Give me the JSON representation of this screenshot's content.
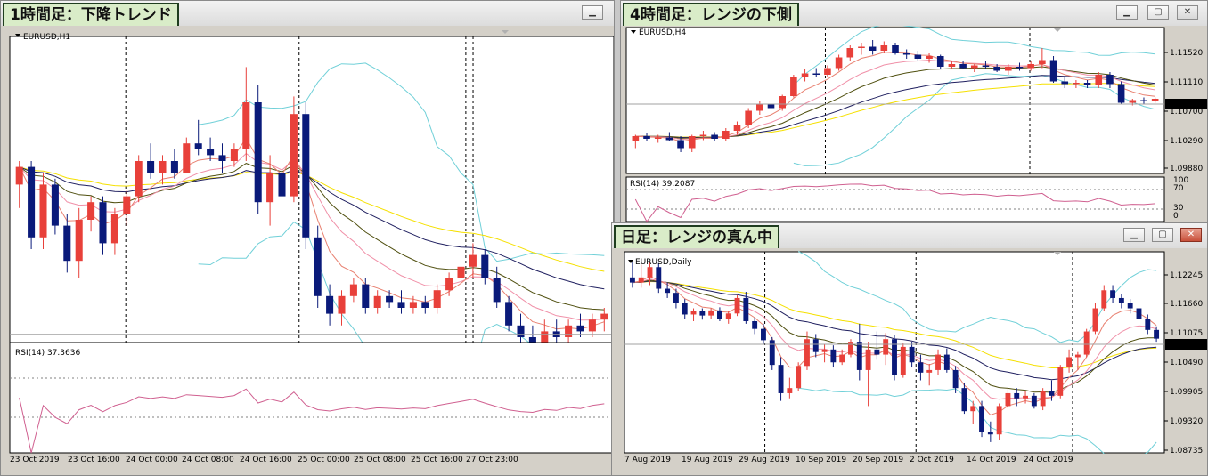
{
  "chart_data": [
    {
      "type": "candlestick",
      "panel_title": "1時間足：下降トレンド",
      "symbol_label": "EURUSD,H1",
      "indicator_label": "RSI(14) 37.3636",
      "x_ticks": [
        "23 Oct 2019",
        "23 Oct 16:00",
        "24 Oct 00:00",
        "24 Oct 08:00",
        "24 Oct 16:00",
        "25 Oct 00:00",
        "25 Oct 08:00",
        "25 Oct 16:00",
        "27 Oct 23:00"
      ],
      "ylim": [
        1.108,
        1.118
      ],
      "current_price": 1.1081,
      "candles": [
        [
          1.1132,
          1.114,
          1.1124,
          1.1138
        ],
        [
          1.1138,
          1.114,
          1.111,
          1.1114
        ],
        [
          1.1114,
          1.1136,
          1.111,
          1.1132
        ],
        [
          1.1132,
          1.1134,
          1.1115,
          1.1118
        ],
        [
          1.1118,
          1.1122,
          1.1102,
          1.1106
        ],
        [
          1.1106,
          1.1124,
          1.11,
          1.112
        ],
        [
          1.112,
          1.1128,
          1.1116,
          1.1126
        ],
        [
          1.1126,
          1.1128,
          1.1108,
          1.1112
        ],
        [
          1.1112,
          1.1124,
          1.1108,
          1.1122
        ],
        [
          1.1122,
          1.113,
          1.1118,
          1.1128
        ],
        [
          1.1128,
          1.1142,
          1.1126,
          1.114
        ],
        [
          1.114,
          1.1146,
          1.1134,
          1.1136
        ],
        [
          1.1136,
          1.1142,
          1.1132,
          1.114
        ],
        [
          1.114,
          1.1144,
          1.1134,
          1.1136
        ],
        [
          1.1136,
          1.1148,
          1.1136,
          1.1146
        ],
        [
          1.1146,
          1.1154,
          1.1142,
          1.1144
        ],
        [
          1.1144,
          1.1148,
          1.114,
          1.1142
        ],
        [
          1.1142,
          1.1146,
          1.1136,
          1.114
        ],
        [
          1.114,
          1.1146,
          1.1138,
          1.1144
        ],
        [
          1.1144,
          1.1172,
          1.114,
          1.116
        ],
        [
          1.116,
          1.1166,
          1.1122,
          1.1126
        ],
        [
          1.1126,
          1.1142,
          1.1118,
          1.1136
        ],
        [
          1.1136,
          1.114,
          1.1124,
          1.1128
        ],
        [
          1.1128,
          1.1162,
          1.1126,
          1.1156
        ],
        [
          1.1156,
          1.116,
          1.111,
          1.1114
        ],
        [
          1.1114,
          1.1118,
          1.109,
          1.1094
        ],
        [
          1.1094,
          1.1098,
          1.1084,
          1.1088
        ],
        [
          1.1088,
          1.1096,
          1.1084,
          1.1094
        ],
        [
          1.1094,
          1.11,
          1.1092,
          1.1098
        ],
        [
          1.1098,
          1.11,
          1.1088,
          1.109
        ],
        [
          1.109,
          1.1096,
          1.1088,
          1.1094
        ],
        [
          1.1094,
          1.1096,
          1.109,
          1.1092
        ],
        [
          1.1092,
          1.1096,
          1.1088,
          1.109
        ],
        [
          1.109,
          1.1094,
          1.1088,
          1.1092
        ],
        [
          1.1092,
          1.1094,
          1.1088,
          1.109
        ],
        [
          1.109,
          1.1098,
          1.1088,
          1.1096
        ],
        [
          1.1096,
          1.1102,
          1.1094,
          1.11
        ],
        [
          1.11,
          1.1106,
          1.1098,
          1.1104
        ],
        [
          1.1104,
          1.1112,
          1.11,
          1.1108
        ],
        [
          1.1108,
          1.111,
          1.1098,
          1.11
        ],
        [
          1.11,
          1.1104,
          1.109,
          1.1092
        ],
        [
          1.1092,
          1.1094,
          1.1082,
          1.1084
        ],
        [
          1.1084,
          1.1088,
          1.1076,
          1.108
        ],
        [
          1.108,
          1.1084,
          1.1074,
          1.1078
        ],
        [
          1.1078,
          1.1086,
          1.1076,
          1.1082
        ],
        [
          1.1082,
          1.1086,
          1.1078,
          1.108
        ],
        [
          1.108,
          1.1086,
          1.1078,
          1.1084
        ],
        [
          1.1084,
          1.1088,
          1.108,
          1.1082
        ],
        [
          1.1082,
          1.1088,
          1.108,
          1.1086
        ],
        [
          1.1086,
          1.109,
          1.1082,
          1.1088
        ]
      ]
    },
    {
      "type": "candlestick",
      "panel_title": "4時間足：レンジの下側",
      "symbol_label": "EURUSD,H4",
      "indicator_label": "RSI(14) 39.2087",
      "y_ticks": [
        1.1152,
        1.1111,
        1.107,
        1.1029,
        1.0988
      ],
      "rsi_ticks": [
        100,
        70,
        30,
        0
      ],
      "ylim": [
        1.098,
        1.118
      ],
      "current_price_label": "1.10810",
      "candles": [
        [
          1.102,
          1.103,
          1.101,
          1.1028
        ],
        [
          1.1028,
          1.1032,
          1.102,
          1.1024
        ],
        [
          1.1024,
          1.103,
          1.1018,
          1.1026
        ],
        [
          1.1026,
          1.1034,
          1.102,
          1.1022
        ],
        [
          1.1022,
          1.1028,
          1.1004,
          1.101
        ],
        [
          1.101,
          1.103,
          1.1004,
          1.1028
        ],
        [
          1.1028,
          1.1036,
          1.1022,
          1.103
        ],
        [
          1.103,
          1.1034,
          1.102,
          1.1024
        ],
        [
          1.1024,
          1.104,
          1.102,
          1.1036
        ],
        [
          1.1036,
          1.105,
          1.103,
          1.1044
        ],
        [
          1.1044,
          1.107,
          1.104,
          1.1066
        ],
        [
          1.1066,
          1.108,
          1.106,
          1.1076
        ],
        [
          1.1076,
          1.1082,
          1.1064,
          1.107
        ],
        [
          1.107,
          1.109,
          1.1066,
          1.1088
        ],
        [
          1.1088,
          1.112,
          1.1086,
          1.1116
        ],
        [
          1.1116,
          1.1128,
          1.111,
          1.1122
        ],
        [
          1.1122,
          1.113,
          1.1116,
          1.112
        ],
        [
          1.112,
          1.1134,
          1.1116,
          1.113
        ],
        [
          1.113,
          1.115,
          1.1126,
          1.1146
        ],
        [
          1.1146,
          1.1164,
          1.114,
          1.116
        ],
        [
          1.116,
          1.1168,
          1.115,
          1.1162
        ],
        [
          1.1162,
          1.1172,
          1.115,
          1.1156
        ],
        [
          1.1156,
          1.117,
          1.1152,
          1.1164
        ],
        [
          1.1164,
          1.1168,
          1.115,
          1.1152
        ],
        [
          1.1152,
          1.1158,
          1.1144,
          1.115
        ],
        [
          1.115,
          1.1156,
          1.114,
          1.1144
        ],
        [
          1.1144,
          1.1152,
          1.1138,
          1.1148
        ],
        [
          1.1148,
          1.115,
          1.1128,
          1.1132
        ],
        [
          1.1132,
          1.114,
          1.1128,
          1.1136
        ],
        [
          1.1136,
          1.114,
          1.1128,
          1.113
        ],
        [
          1.113,
          1.1136,
          1.1124,
          1.1134
        ],
        [
          1.1134,
          1.114,
          1.1128,
          1.1132
        ],
        [
          1.1132,
          1.1136,
          1.1124,
          1.1126
        ],
        [
          1.1126,
          1.1136,
          1.112,
          1.1132
        ],
        [
          1.1132,
          1.1138,
          1.1126,
          1.113
        ],
        [
          1.113,
          1.114,
          1.1126,
          1.1136
        ],
        [
          1.1136,
          1.116,
          1.113,
          1.1142
        ],
        [
          1.1142,
          1.1148,
          1.1108,
          1.111
        ],
        [
          1.111,
          1.1116,
          1.11,
          1.1106
        ],
        [
          1.1106,
          1.1112,
          1.11,
          1.1108
        ],
        [
          1.1108,
          1.1112,
          1.11,
          1.1104
        ],
        [
          1.1104,
          1.1124,
          1.11,
          1.112
        ],
        [
          1.112,
          1.1124,
          1.11,
          1.1106
        ],
        [
          1.1106,
          1.111,
          1.1076,
          1.1078
        ],
        [
          1.1078,
          1.1084,
          1.1074,
          1.1082
        ],
        [
          1.1082,
          1.1086,
          1.1076,
          1.108
        ],
        [
          1.108,
          1.1086,
          1.1078,
          1.1084
        ]
      ]
    },
    {
      "type": "candlestick",
      "panel_title": "日足：レンジの真ん中",
      "symbol_label": "EURUSD,Daily",
      "x_ticks": [
        "7 Aug 2019",
        "19 Aug 2019",
        "29 Aug 2019",
        "10 Sep 2019",
        "20 Sep 2019",
        "2 Oct 2019",
        "14 Oct 2019",
        "24 Oct 2019"
      ],
      "y_ticks": [
        1.12245,
        1.1166,
        1.11075,
        1.1049,
        1.09905,
        1.0932,
        1.08735
      ],
      "ylim": [
        1.0866,
        1.1236
      ],
      "current_price_label": "1.10810",
      "candles": [
        [
          1.12,
          1.123,
          1.118,
          1.119
        ],
        [
          1.119,
          1.1225,
          1.118,
          1.12
        ],
        [
          1.12,
          1.123,
          1.1185,
          1.122
        ],
        [
          1.122,
          1.1228,
          1.117,
          1.1178
        ],
        [
          1.1178,
          1.119,
          1.116,
          1.117
        ],
        [
          1.117,
          1.1178,
          1.114,
          1.115
        ],
        [
          1.115,
          1.1158,
          1.112,
          1.1128
        ],
        [
          1.1128,
          1.114,
          1.1115,
          1.1135
        ],
        [
          1.1135,
          1.114,
          1.1118,
          1.1126
        ],
        [
          1.1126,
          1.114,
          1.112,
          1.1136
        ],
        [
          1.1136,
          1.1142,
          1.1115,
          1.112
        ],
        [
          1.112,
          1.1135,
          1.111,
          1.113
        ],
        [
          1.113,
          1.1165,
          1.1125,
          1.116
        ],
        [
          1.116,
          1.1172,
          1.111,
          1.1115
        ],
        [
          1.1115,
          1.1122,
          1.109,
          1.11
        ],
        [
          1.11,
          1.111,
          1.107,
          1.1078
        ],
        [
          1.1078,
          1.1084,
          1.102,
          1.103
        ],
        [
          1.103,
          1.1045,
          1.096,
          1.0975
        ],
        [
          1.0975,
          1.1005,
          1.0965,
          1.0985
        ],
        [
          1.0985,
          1.1035,
          1.098,
          1.1028
        ],
        [
          1.1028,
          1.1095,
          1.102,
          1.108
        ],
        [
          1.108,
          1.109,
          1.1045,
          1.1055
        ],
        [
          1.1055,
          1.107,
          1.1035,
          1.106
        ],
        [
          1.106,
          1.1068,
          1.1025,
          1.1035
        ],
        [
          1.1035,
          1.106,
          1.103,
          1.105
        ],
        [
          1.105,
          1.108,
          1.1045,
          1.1075
        ],
        [
          1.1075,
          1.111,
          1.1,
          1.102
        ],
        [
          1.102,
          1.1075,
          1.095,
          1.106
        ],
        [
          1.106,
          1.1095,
          1.104,
          1.105
        ],
        [
          1.105,
          1.1092,
          1.103,
          1.108
        ],
        [
          1.108,
          1.1088,
          1.1,
          1.101
        ],
        [
          1.101,
          1.1072,
          1.1005,
          1.1065
        ],
        [
          1.1065,
          1.1075,
          1.1025,
          1.1035
        ],
        [
          1.1035,
          1.105,
          1.1,
          1.1015
        ],
        [
          1.1015,
          1.1032,
          1.099,
          1.102
        ],
        [
          1.102,
          1.106,
          1.101,
          1.105
        ],
        [
          1.105,
          1.1062,
          1.1015,
          1.102
        ],
        [
          1.102,
          1.1028,
          1.0975,
          1.0985
        ],
        [
          1.0985,
          1.0995,
          1.0935,
          1.094
        ],
        [
          1.094,
          1.096,
          1.0915,
          1.095
        ],
        [
          1.095,
          1.096,
          1.089,
          1.09
        ],
        [
          1.09,
          1.092,
          1.088,
          1.0895
        ],
        [
          1.0895,
          1.0955,
          1.0885,
          1.095
        ],
        [
          1.095,
          1.0985,
          1.0945,
          1.0975
        ],
        [
          1.0975,
          1.0985,
          1.095,
          1.0965
        ],
        [
          1.0965,
          1.098,
          1.0955,
          1.097
        ],
        [
          1.097,
          1.0975,
          1.0945,
          1.095
        ],
        [
          1.095,
          1.0985,
          1.0942,
          1.098
        ],
        [
          1.098,
          1.1,
          1.096,
          1.097
        ],
        [
          1.097,
          1.103,
          1.0965,
          1.1025
        ],
        [
          1.1025,
          1.106,
          1.1015,
          1.1045
        ],
        [
          1.1045,
          1.1055,
          1.102,
          1.105
        ],
        [
          1.105,
          1.11,
          1.1045,
          1.1095
        ],
        [
          1.1095,
          1.115,
          1.109,
          1.114
        ],
        [
          1.114,
          1.1185,
          1.1135,
          1.1175
        ],
        [
          1.1175,
          1.1185,
          1.115,
          1.116
        ],
        [
          1.116,
          1.1168,
          1.114,
          1.115
        ],
        [
          1.115,
          1.1158,
          1.113,
          1.114
        ],
        [
          1.114,
          1.1148,
          1.111,
          1.112
        ],
        [
          1.112,
          1.1128,
          1.109,
          1.1098
        ],
        [
          1.1098,
          1.1105,
          1.1075,
          1.1081
        ]
      ]
    }
  ],
  "colors": {
    "bull": "#e8403a",
    "bear": "#0a1a7a",
    "ma_yellow": "#f5e000",
    "ma_navy": "#202060",
    "ma_olive": "#505010",
    "ma_pink": "#f090a8",
    "ma_red": "#e88070",
    "bollinger": "#70d0d8",
    "rsi": "#d06090",
    "grid": "#808080"
  }
}
